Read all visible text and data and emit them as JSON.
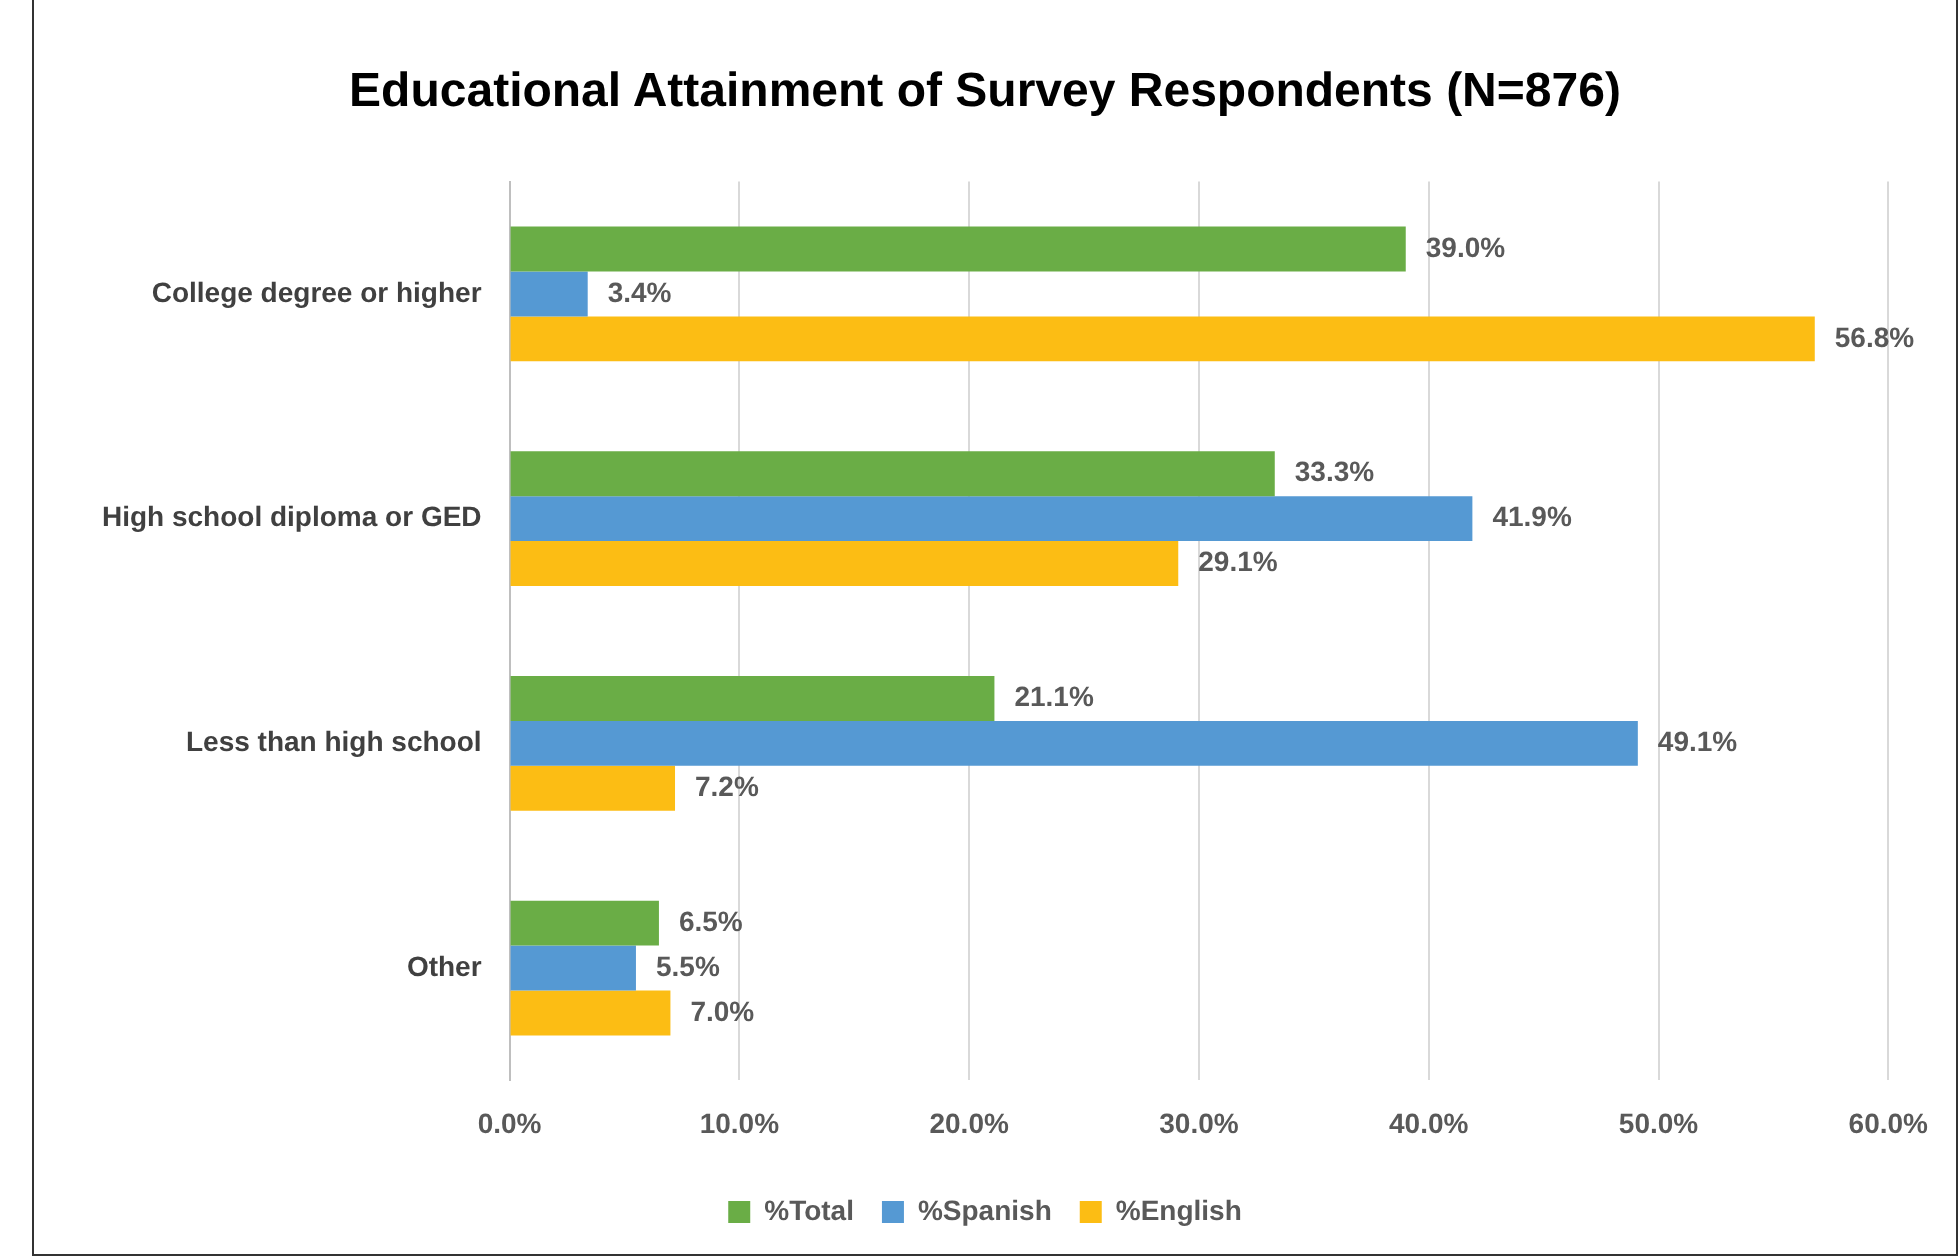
{
  "chart_data": {
    "type": "bar",
    "orientation": "horizontal",
    "title": "Educational Attainment of Survey Respondents (N=876)",
    "categories": [
      "College degree or higher",
      "High school diploma or GED",
      "Less than high school",
      "Other"
    ],
    "series": [
      {
        "name": "%Total",
        "color": "#6aad46",
        "values": [
          39.0,
          33.3,
          21.1,
          6.5
        ],
        "value_labels": [
          "39.0%",
          "33.3%",
          "21.1%",
          "6.5%"
        ]
      },
      {
        "name": "%Spanish",
        "color": "#5599d3",
        "values": [
          3.4,
          41.9,
          49.1,
          5.5
        ],
        "value_labels": [
          "3.4%",
          "41.9%",
          "49.1%",
          "5.5%"
        ]
      },
      {
        "name": "%English",
        "color": "#fcbd14",
        "values": [
          56.8,
          29.1,
          7.2,
          7.0
        ],
        "value_labels": [
          "56.8%",
          "29.1%",
          "7.2%",
          "7.0%"
        ]
      }
    ],
    "xlim": [
      0,
      60
    ],
    "xticks": [
      {
        "value": 0,
        "label": "0.0%"
      },
      {
        "value": 10,
        "label": "10.0%"
      },
      {
        "value": 20,
        "label": "20.0%"
      },
      {
        "value": 30,
        "label": "30.0%"
      },
      {
        "value": 40,
        "label": "40.0%"
      },
      {
        "value": 50,
        "label": "50.0%"
      },
      {
        "value": 60,
        "label": "60.0%"
      }
    ],
    "grid": "x",
    "legend": "bottom"
  }
}
